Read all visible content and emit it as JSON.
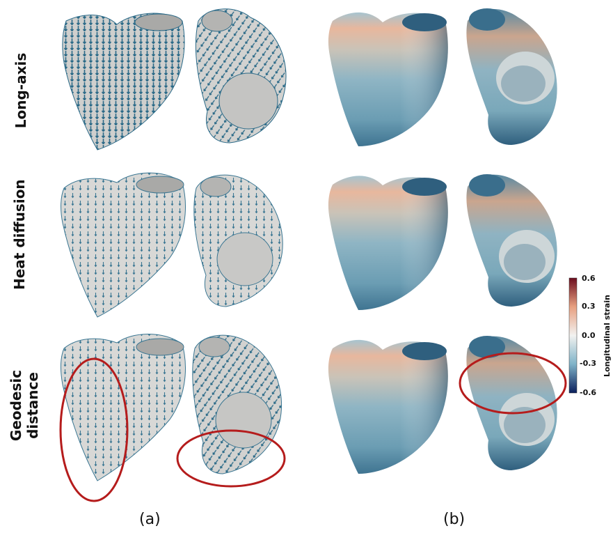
{
  "rows": [
    {
      "label": "Long-axis"
    },
    {
      "label": "Heat diffusion"
    },
    {
      "label_line1": "Geodesic",
      "label_line2": "distance"
    }
  ],
  "panels": {
    "a": "(a)",
    "b": "(b)"
  },
  "colorbar": {
    "title": "Longitudinal strain",
    "ticks": [
      "0.6",
      "0.3",
      "0.0",
      "-0.3",
      "-0.6"
    ],
    "colors": {
      "high": "#6b0d1e",
      "mid_high": "#e8a080",
      "mid": "#f2f2f0",
      "mid_low": "#7fb3c8",
      "low": "#0b1f5c"
    }
  },
  "colors": {
    "arrow": "#2b6a88",
    "mesh": "#d4d4d2",
    "highlight": "#b51c1c"
  }
}
